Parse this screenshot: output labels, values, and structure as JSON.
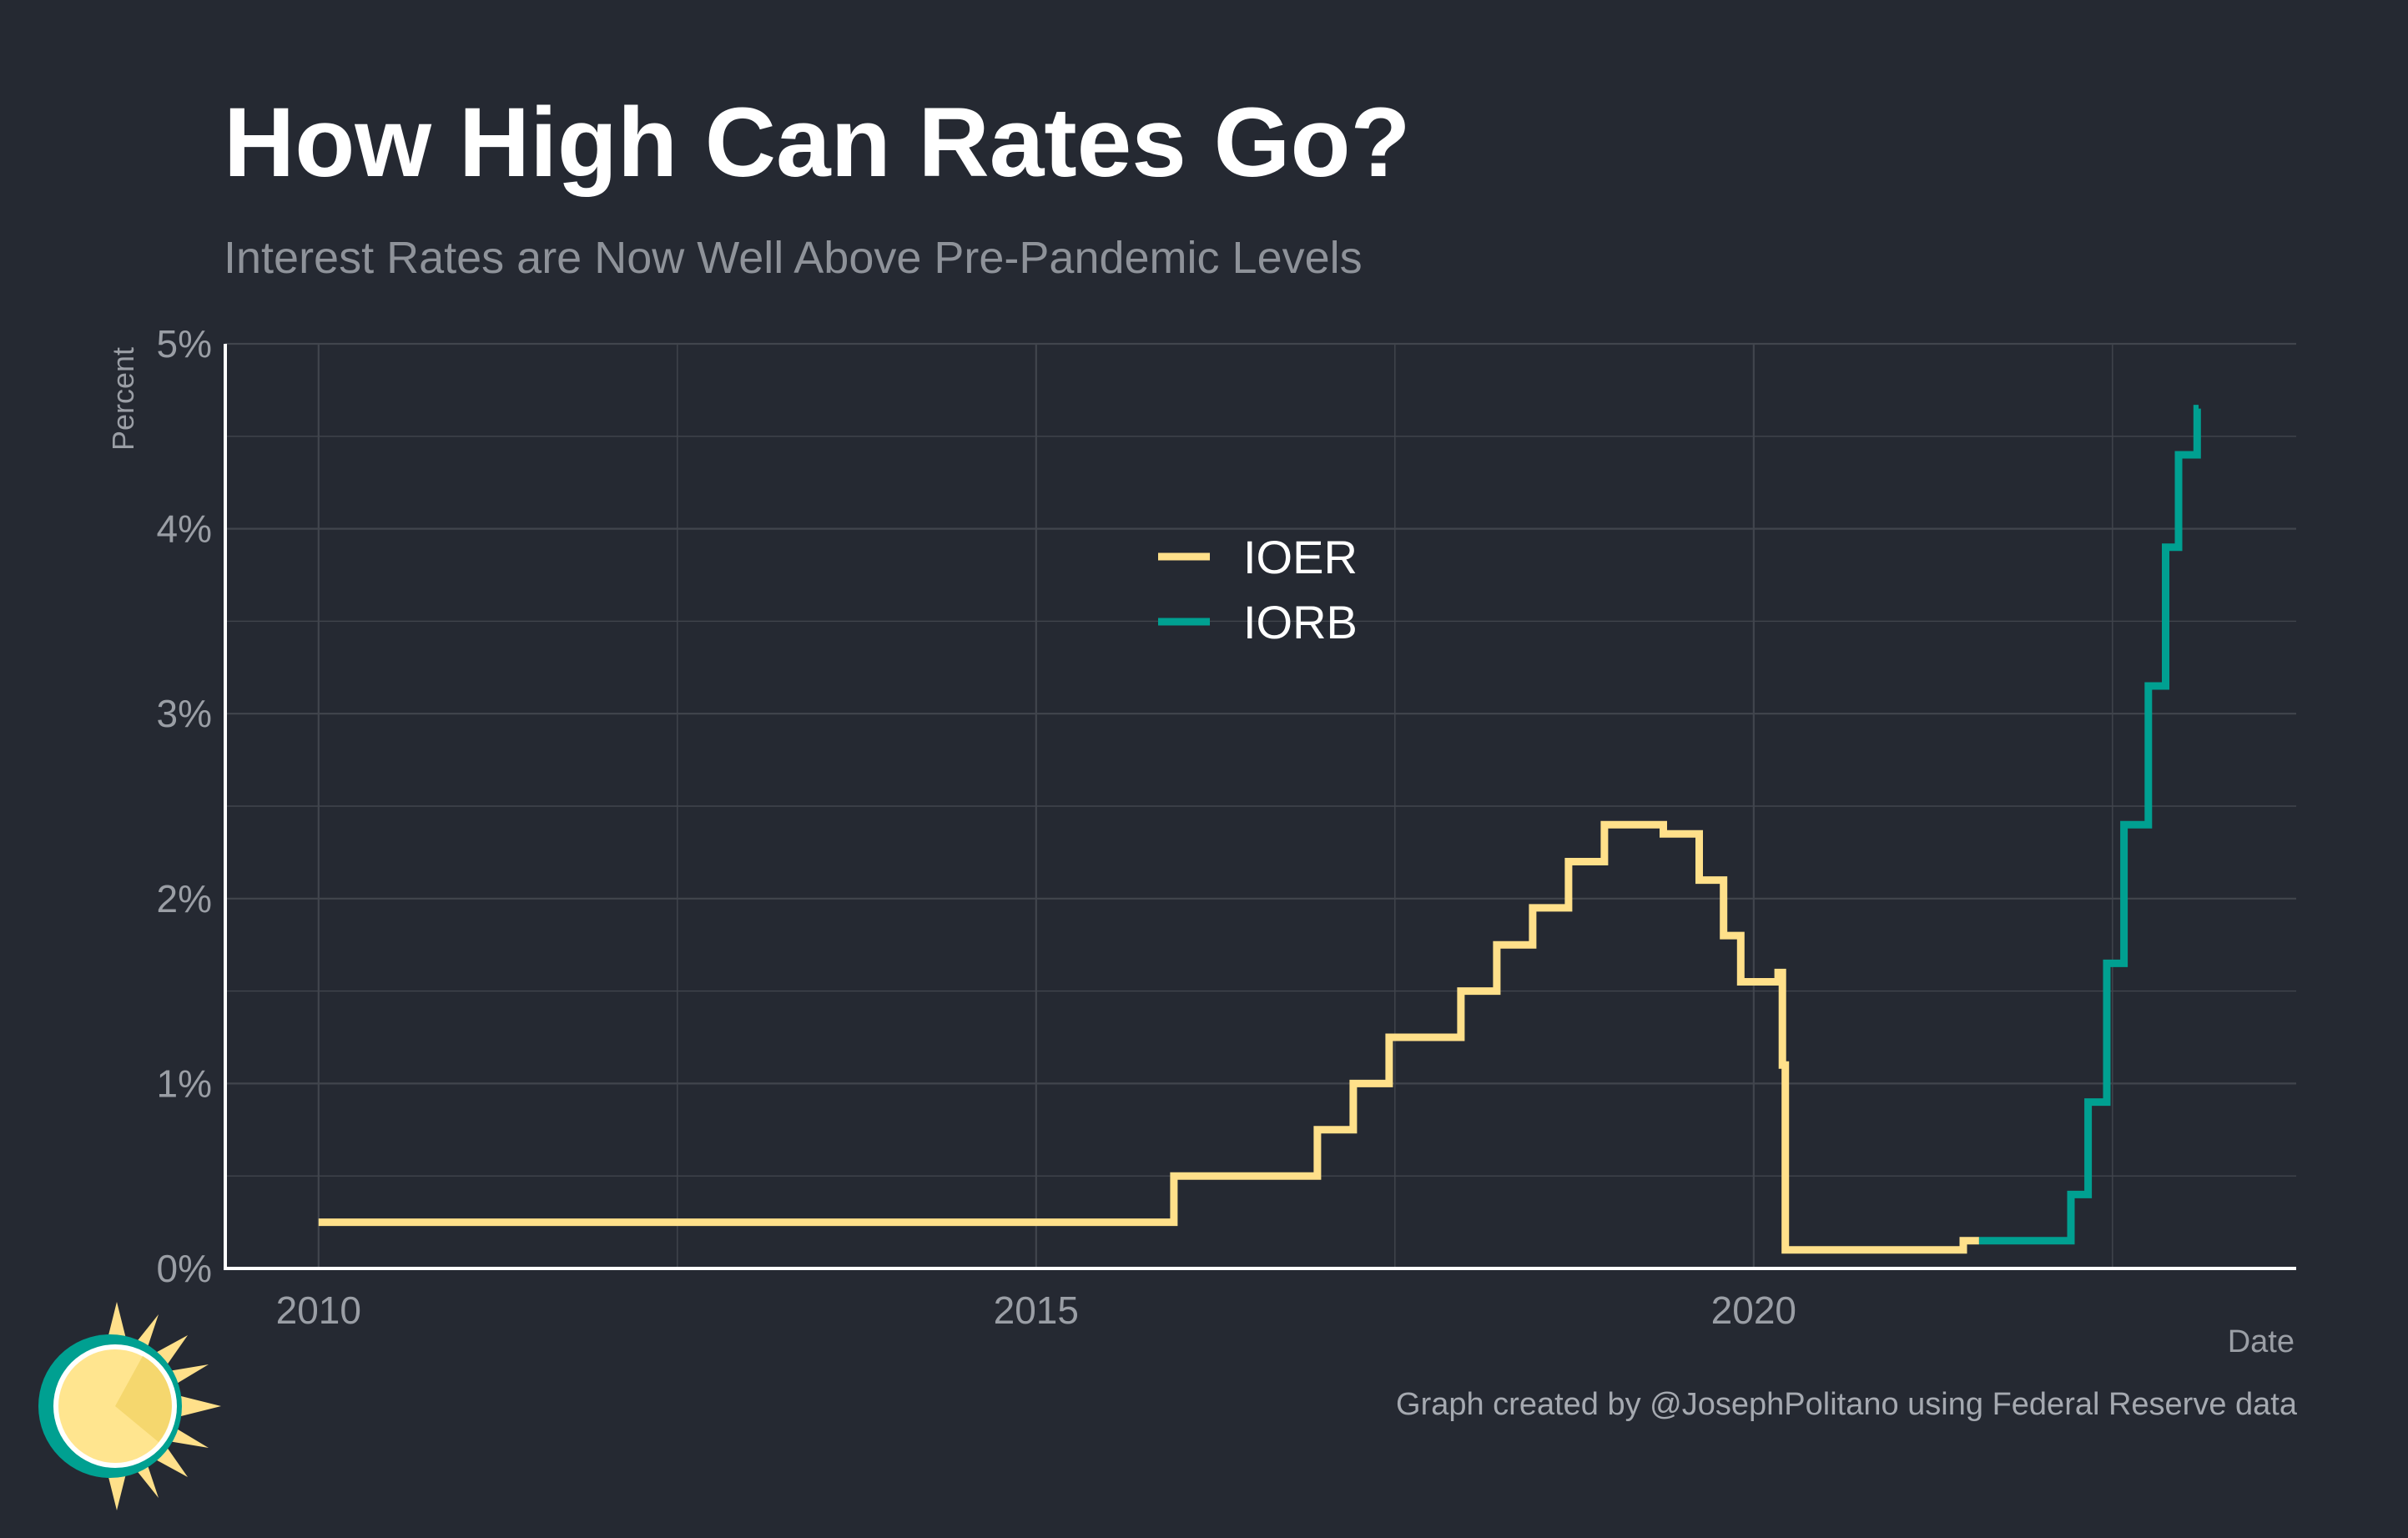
{
  "title": "How High Can Rates Go?",
  "subtitle": "Interest Rates are Now Well Above Pre-Pandemic Levels",
  "caption": "Graph created by @JosephPolitano using Federal Reserve data",
  "colors": {
    "background": "#252932",
    "grid": "#41454d",
    "axis": "#ffffff",
    "tick_text": "#9a9ea5",
    "ioer": "#ffe08a",
    "iorb": "#00a091"
  },
  "chart_data": {
    "type": "line",
    "line_shape": "step",
    "xlabel": "Date",
    "ylabel": "Percent",
    "xlim": [
      2009.35,
      2023.78
    ],
    "ylim": [
      0,
      5
    ],
    "x_ticks": [
      2010,
      2015,
      2020
    ],
    "x_tick_labels": [
      "2010",
      "2015",
      "2020"
    ],
    "y_ticks": [
      0,
      1,
      2,
      3,
      4,
      5
    ],
    "y_tick_labels": [
      "0%",
      "1%",
      "2%",
      "3%",
      "4%",
      "5%"
    ],
    "grid": true,
    "legend_position": "top-center",
    "series": [
      {
        "name": "IOER",
        "color": "#ffe08a",
        "points": [
          [
            2010.0,
            0.25
          ],
          [
            2015.96,
            0.25
          ],
          [
            2015.96,
            0.5
          ],
          [
            2016.96,
            0.5
          ],
          [
            2016.96,
            0.75
          ],
          [
            2017.21,
            0.75
          ],
          [
            2017.21,
            1.0
          ],
          [
            2017.46,
            1.0
          ],
          [
            2017.46,
            1.25
          ],
          [
            2017.96,
            1.25
          ],
          [
            2017.96,
            1.5
          ],
          [
            2018.21,
            1.5
          ],
          [
            2018.21,
            1.75
          ],
          [
            2018.46,
            1.75
          ],
          [
            2018.46,
            1.95
          ],
          [
            2018.71,
            1.95
          ],
          [
            2018.71,
            2.2
          ],
          [
            2018.96,
            2.2
          ],
          [
            2018.96,
            2.4
          ],
          [
            2019.37,
            2.4
          ],
          [
            2019.37,
            2.35
          ],
          [
            2019.62,
            2.35
          ],
          [
            2019.62,
            2.1
          ],
          [
            2019.79,
            2.1
          ],
          [
            2019.79,
            1.8
          ],
          [
            2019.91,
            1.8
          ],
          [
            2019.91,
            1.55
          ],
          [
            2020.17,
            1.55
          ],
          [
            2020.17,
            1.6
          ],
          [
            2020.2,
            1.6
          ],
          [
            2020.2,
            1.1
          ],
          [
            2020.22,
            1.1
          ],
          [
            2020.22,
            0.1
          ],
          [
            2021.46,
            0.1
          ],
          [
            2021.46,
            0.15
          ],
          [
            2021.57,
            0.15
          ]
        ]
      },
      {
        "name": "IORB",
        "color": "#00a091",
        "points": [
          [
            2021.57,
            0.15
          ],
          [
            2022.21,
            0.15
          ],
          [
            2022.21,
            0.4
          ],
          [
            2022.33,
            0.4
          ],
          [
            2022.33,
            0.9
          ],
          [
            2022.46,
            0.9
          ],
          [
            2022.46,
            1.65
          ],
          [
            2022.58,
            1.65
          ],
          [
            2022.58,
            2.4
          ],
          [
            2022.75,
            2.4
          ],
          [
            2022.75,
            3.15
          ],
          [
            2022.87,
            3.15
          ],
          [
            2022.87,
            3.9
          ],
          [
            2022.96,
            3.9
          ],
          [
            2022.96,
            4.4
          ],
          [
            2023.09,
            4.4
          ],
          [
            2023.09,
            4.65
          ],
          [
            2023.1,
            4.65
          ]
        ]
      }
    ]
  }
}
